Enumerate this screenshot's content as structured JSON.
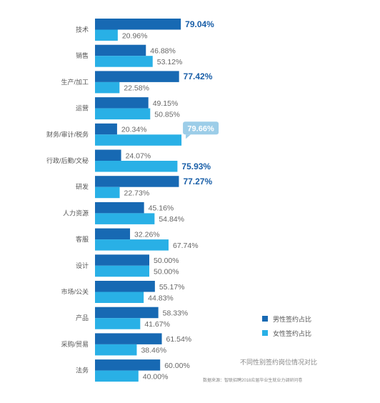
{
  "chart_data": {
    "type": "bar",
    "orientation": "horizontal",
    "categories": [
      "技术",
      "销售",
      "生产/加工",
      "运营",
      "财务/审计/税务",
      "行政/后勤/文秘",
      "研发",
      "人力资源",
      "客服",
      "设计",
      "市场/公关",
      "产品",
      "采购/贸易",
      "法务"
    ],
    "series": [
      {
        "name": "男性签约占比",
        "color": "#1769b3",
        "values": [
          79.04,
          46.88,
          77.42,
          49.15,
          20.34,
          24.07,
          77.27,
          45.16,
          32.26,
          50.0,
          55.17,
          58.33,
          61.54,
          60.0
        ],
        "labels": [
          "79.04%",
          "46.88%",
          "77.42%",
          "49.15%",
          "20.34%",
          "24.07%",
          "77.27%",
          "45.16%",
          "32.26%",
          "50.00%",
          "55.17%",
          "58.33%",
          "61.54%",
          "60.00%"
        ]
      },
      {
        "name": "女性签约占比",
        "color": "#29b0e6",
        "values": [
          20.96,
          53.12,
          22.58,
          50.85,
          79.66,
          75.93,
          22.73,
          54.84,
          67.74,
          50.0,
          44.83,
          41.67,
          38.46,
          40.0
        ],
        "labels": [
          "20.96%",
          "53.12%",
          "22.58%",
          "50.85%",
          "79.66%",
          "75.93%",
          "22.73%",
          "54.84%",
          "67.74%",
          "50.00%",
          "44.83%",
          "41.67%",
          "38.46%",
          "40.00%"
        ]
      }
    ],
    "highlighted": [
      {
        "series": 0,
        "index": 0
      },
      {
        "series": 0,
        "index": 2
      },
      {
        "series": 0,
        "index": 6
      },
      {
        "series": 1,
        "index": 5
      },
      {
        "series": 1,
        "index": 4,
        "callout": true
      }
    ],
    "xlim": [
      0,
      100
    ],
    "grid": false,
    "legend_position": "bottom-right",
    "subtitle": "不同性别签约岗位情况对比",
    "source": "数据来源：智联招聘2018应届毕业生就业力调研问卷"
  }
}
